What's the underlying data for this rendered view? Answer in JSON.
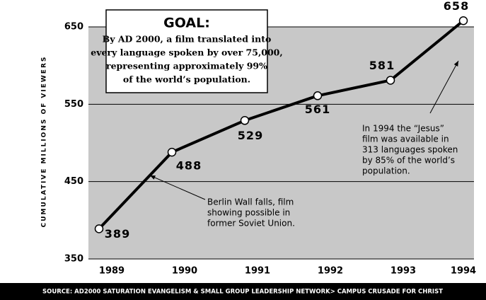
{
  "chart_data": {
    "type": "line",
    "y_label": "CUMULATIVE MILLIONS OF VIEWERS",
    "categories": [
      "1989",
      "1990",
      "1991",
      "1992",
      "1993",
      "1994"
    ],
    "series": [
      {
        "name": "Cumulative viewers",
        "color": "#000000",
        "values": [
          389,
          488,
          529,
          561,
          581,
          658
        ]
      }
    ],
    "ylim": [
      350,
      650
    ],
    "yticks": [
      350,
      450,
      550,
      650
    ],
    "grid": true,
    "background": "#c8c8c8",
    "goal": {
      "title": "GOAL:",
      "lines": [
        "By AD 2000, a film translated into",
        "every language spoken by over 75,000,",
        "representing approximately 99%",
        "of the world’s population."
      ]
    },
    "annotations": [
      {
        "lines": [
          "Berlin Wall falls, film",
          "showing possible in",
          "former Soviet Union."
        ]
      },
      {
        "lines": [
          "In 1994 the “Jesus”",
          "film was available in",
          "313 languages spoken",
          "by 85% of the world’s",
          "population."
        ]
      }
    ],
    "source": "SOURCE: AD2000 SATURATION EVANGELISM & SMALL GROUP LEADERSHIP NETWORK> CAMPUS CRUSADE FOR CHRIST"
  }
}
